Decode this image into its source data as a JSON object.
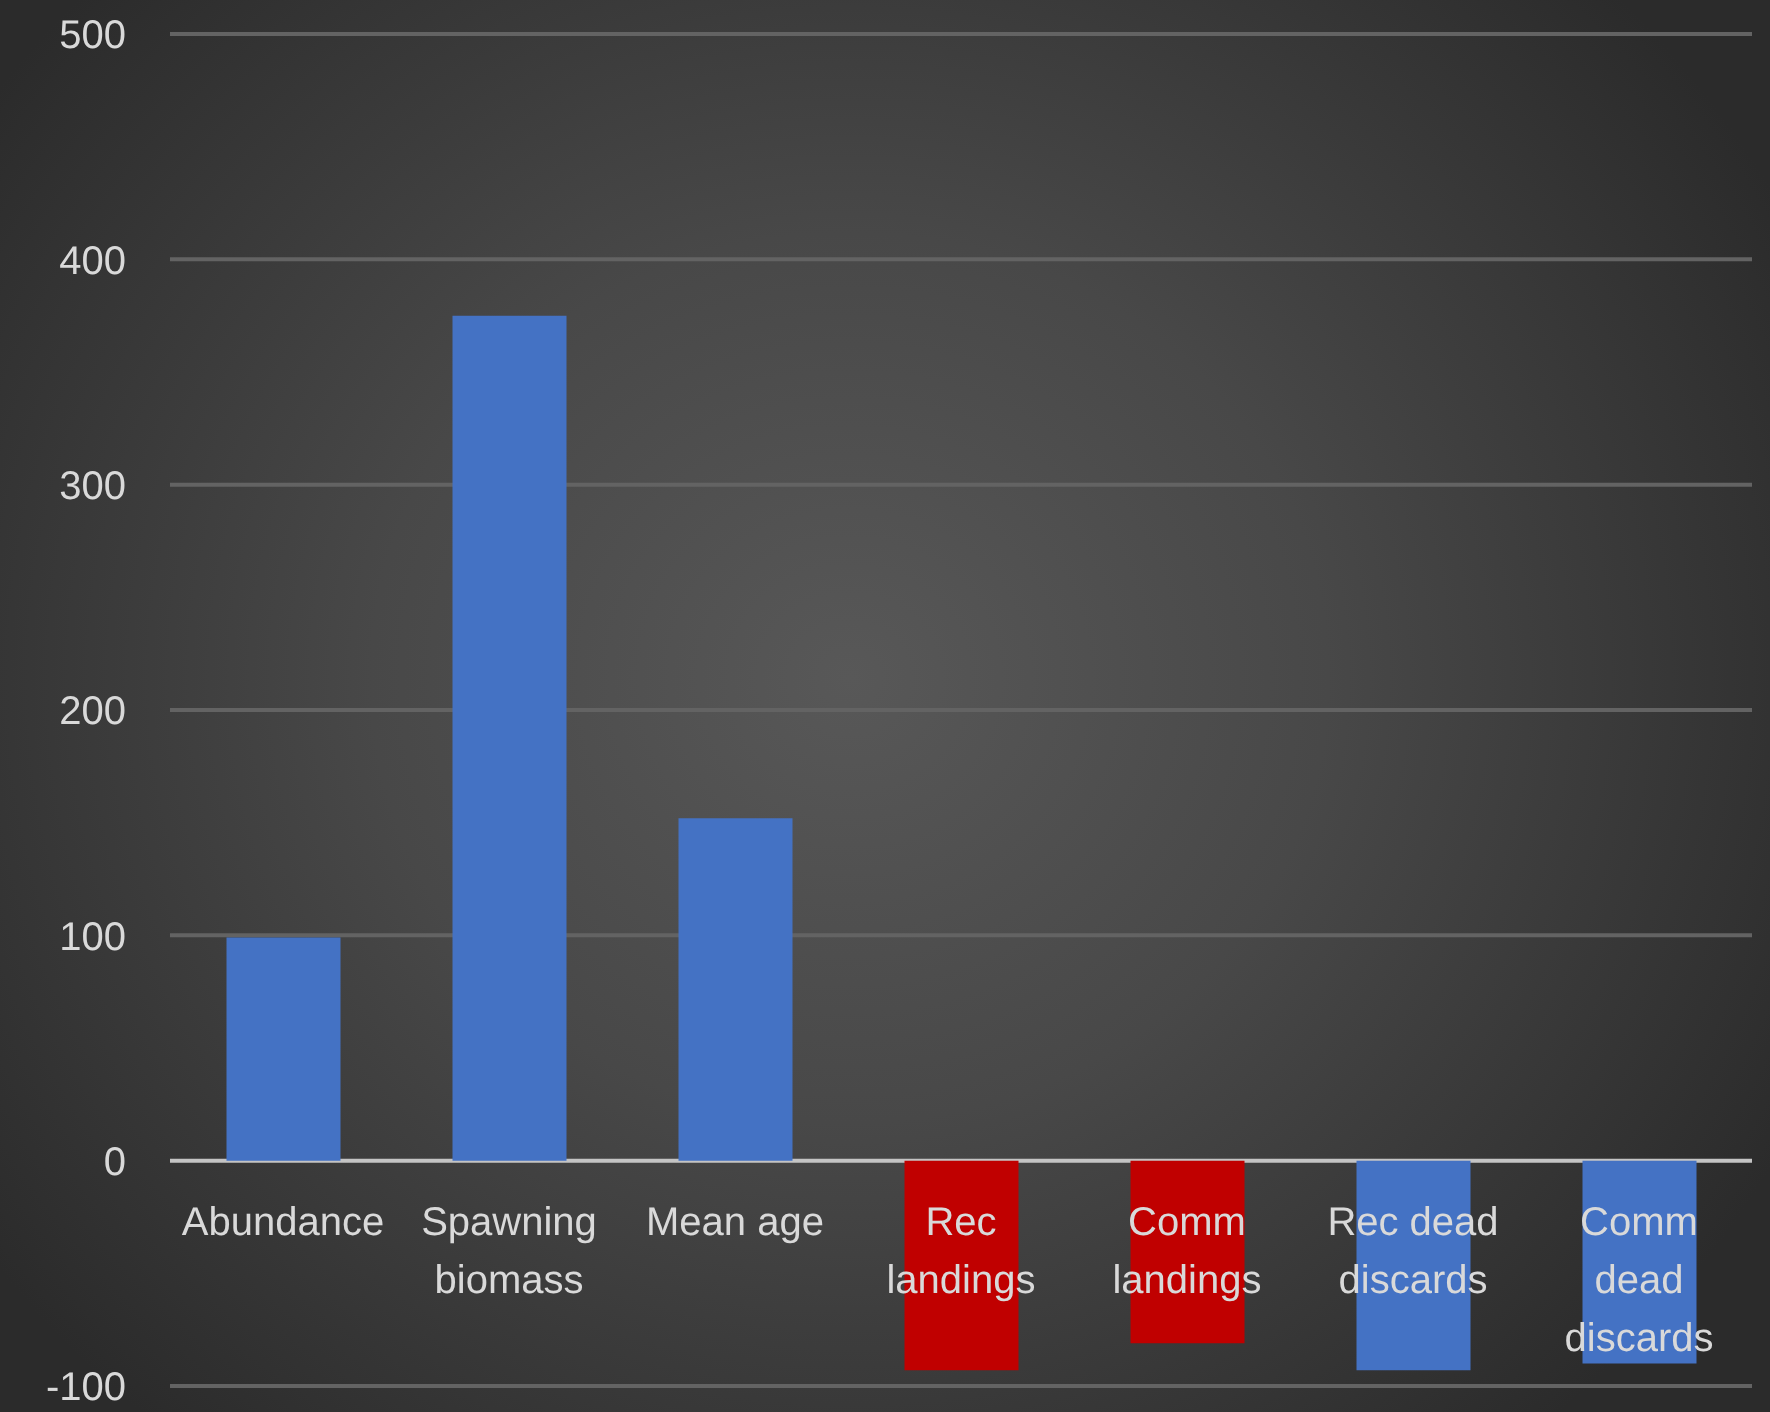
{
  "chart_data": {
    "type": "bar",
    "categories": [
      "Abundance",
      "Spawning biomass",
      "Mean age",
      "Rec landings",
      "Comm landings",
      "Rec dead discards",
      "Comm dead discards"
    ],
    "values": [
      99,
      375,
      152,
      -93,
      -81,
      -93,
      -90
    ],
    "colors": [
      "#4472c4",
      "#4472c4",
      "#4472c4",
      "#c00000",
      "#c00000",
      "#4472c4",
      "#4472c4"
    ],
    "ylim": [
      -100,
      500
    ],
    "yticks": [
      -100,
      0,
      100,
      200,
      300,
      400,
      500
    ],
    "grid": "y"
  }
}
